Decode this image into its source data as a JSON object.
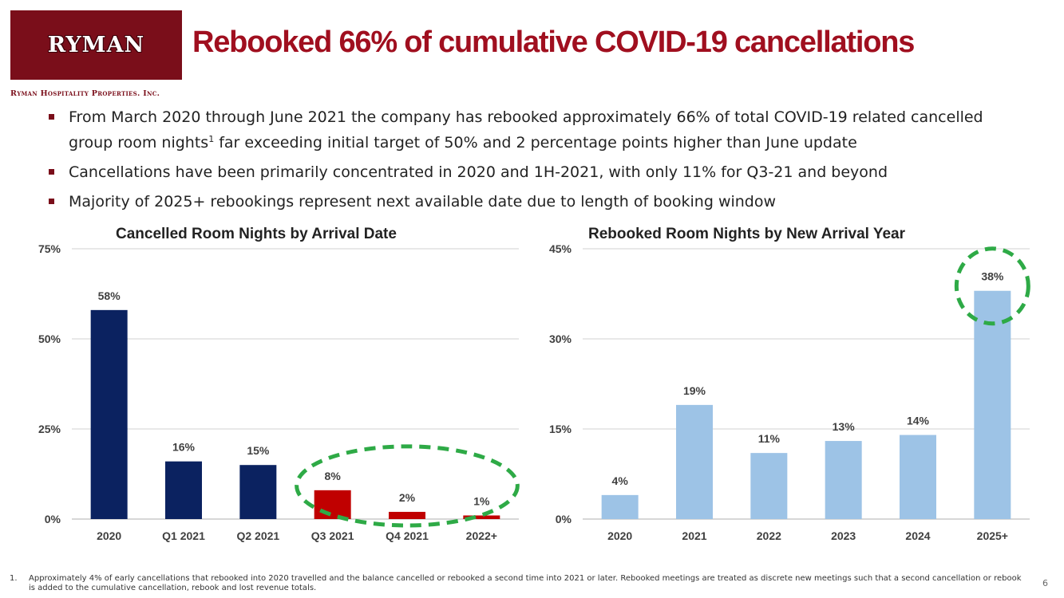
{
  "logo": {
    "name": "RYMAN",
    "subtitle": "Ryman Hospitality Properties. Inc."
  },
  "title": "Rebooked 66% of cumulative COVID-19 cancellations",
  "bullets": [
    {
      "text": "From March 2020 through June 2021 the company has rebooked approximately 66% of total COVID-19 related cancelled group room nights",
      "sup": "1",
      "text2": " far exceeding initial target of 50% and 2 percentage points higher than June update"
    },
    {
      "text": "Cancellations have been primarily concentrated in 2020 and 1H-2021, with only 11% for Q3-21 and beyond",
      "sup": "",
      "text2": ""
    },
    {
      "text": "Majority of 2025+ rebookings represent next available date due to length of booking window",
      "sup": "",
      "text2": ""
    }
  ],
  "chart_data": [
    {
      "type": "bar",
      "title": "Cancelled Room Nights by Arrival Date",
      "categories": [
        "2020",
        "Q1 2021",
        "Q2 2021",
        "Q3 2021",
        "Q4 2021",
        "2022+"
      ],
      "values": [
        58,
        16,
        15,
        8,
        2,
        1
      ],
      "value_labels": [
        "58%",
        "16%",
        "15%",
        "8%",
        "2%",
        "1%"
      ],
      "colors": [
        "#0b2260",
        "#0b2260",
        "#0b2260",
        "#c00000",
        "#c00000",
        "#c00000"
      ],
      "yticks": [
        0,
        25,
        50,
        75
      ],
      "ytick_labels": [
        "0%",
        "25%",
        "50%",
        "75%"
      ],
      "ylim": [
        0,
        75
      ],
      "grid": true,
      "highlight": {
        "shape": "dashed-ellipse",
        "color": "#2eaa46",
        "categories": [
          "Q3 2021",
          "Q4 2021",
          "2022+"
        ]
      }
    },
    {
      "type": "bar",
      "title": "Rebooked Room Nights by New Arrival Year",
      "categories": [
        "2020",
        "2021",
        "2022",
        "2023",
        "2024",
        "2025+"
      ],
      "values": [
        4,
        19,
        11,
        13,
        14,
        38
      ],
      "value_labels": [
        "4%",
        "19%",
        "11%",
        "13%",
        "14%",
        "38%"
      ],
      "colors": [
        "#9dc3e6",
        "#9dc3e6",
        "#9dc3e6",
        "#9dc3e6",
        "#9dc3e6",
        "#9dc3e6"
      ],
      "yticks": [
        0,
        15,
        30,
        45
      ],
      "ytick_labels": [
        "0%",
        "15%",
        "30%",
        "45%"
      ],
      "ylim": [
        0,
        45
      ],
      "grid": true,
      "highlight": {
        "shape": "dashed-ellipse",
        "color": "#2eaa46",
        "categories": [
          "2025+"
        ]
      }
    }
  ],
  "footnote": {
    "number": "1.",
    "text": "Approximately 4% of early cancellations that rebooked into 2020 travelled and the balance cancelled or rebooked a second time into 2021 or later. Rebooked meetings are treated as discrete new meetings such that a second cancellation or rebook is added to the cumulative cancellation, rebook and lost revenue totals."
  },
  "page_number": "6"
}
